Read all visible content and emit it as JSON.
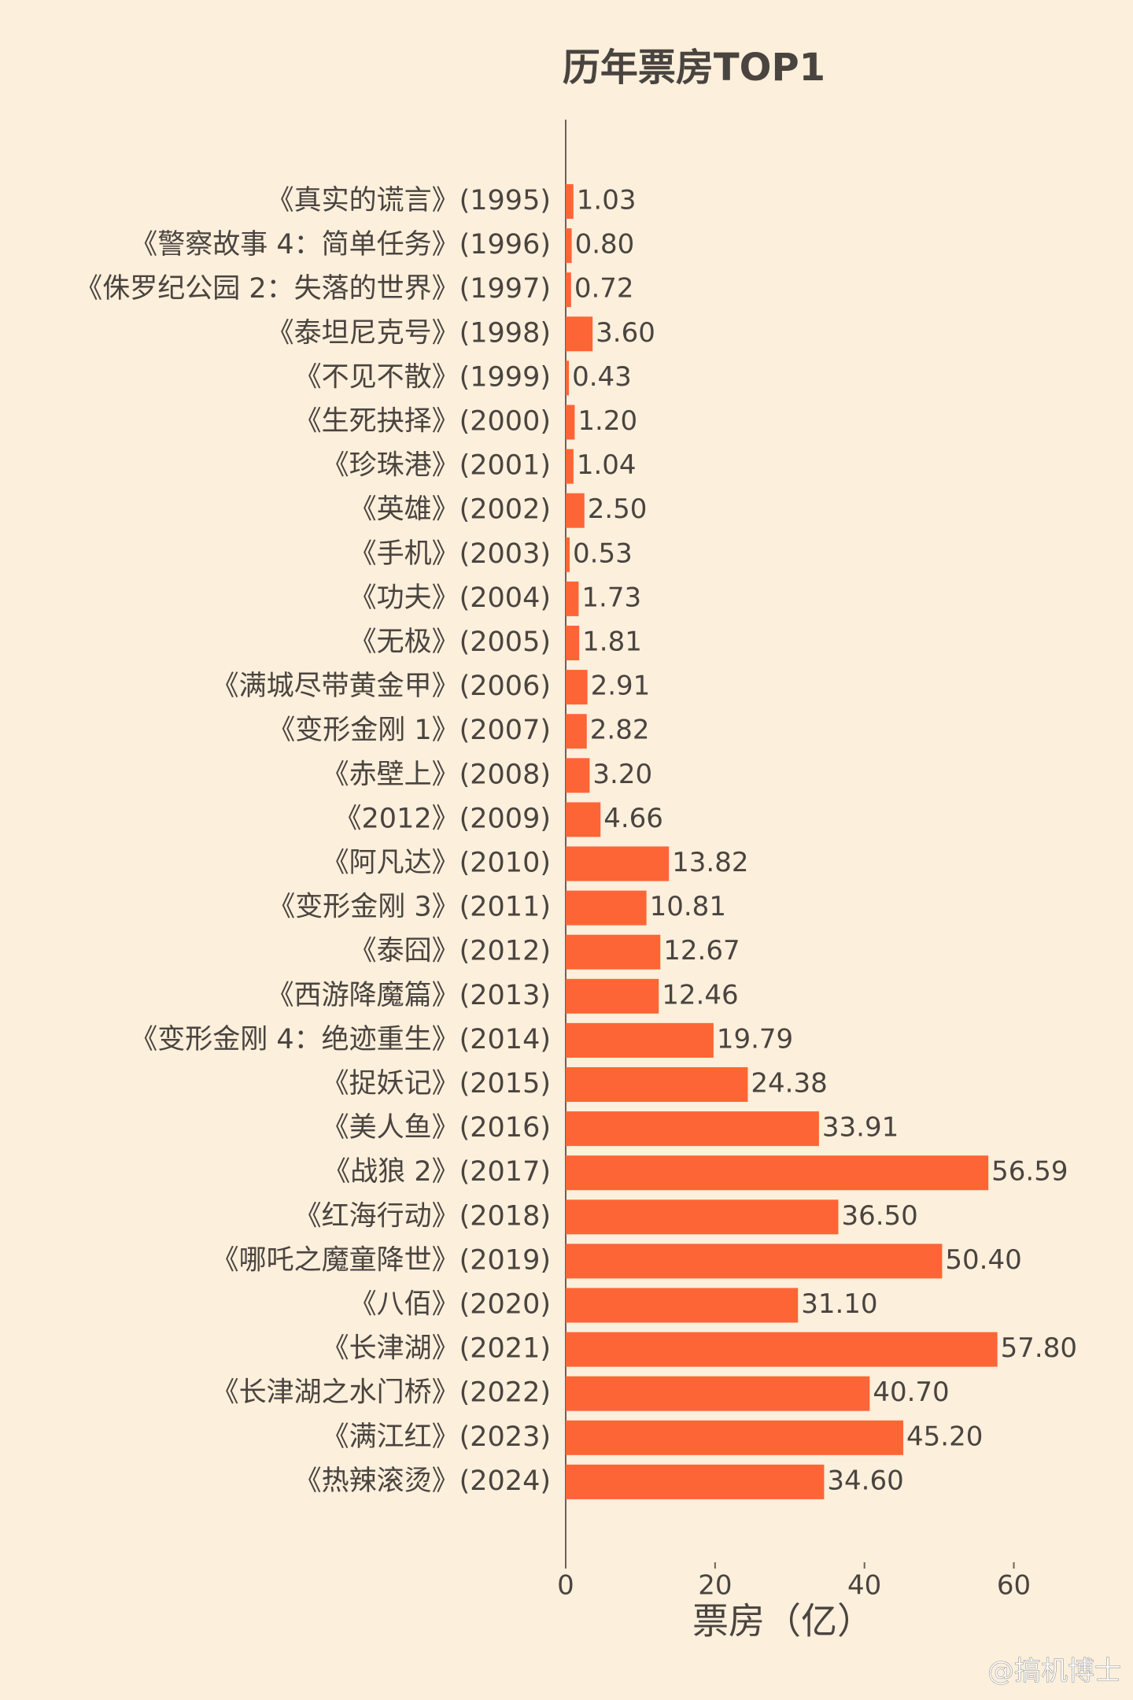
{
  "chart_data": {
    "type": "bar",
    "orientation": "horizontal",
    "title": "历年票房TOP1",
    "x_label": "票房（亿）",
    "categories": [
      "《真实的谎言》(1995)",
      "《警察故事 4：简单任务》(1996)",
      "《侏罗纪公园 2：失落的世界》(1997)",
      "《泰坦尼克号》(1998)",
      "《不见不散》(1999)",
      "《生死抉择》(2000)",
      "《珍珠港》(2001)",
      "《英雄》(2002)",
      "《手机》(2003)",
      "《功夫》(2004)",
      "《无极》(2005)",
      "《满城尽带黄金甲》(2006)",
      "《变形金刚 1》(2007)",
      "《赤壁上》(2008)",
      "《2012》(2009)",
      "《阿凡达》(2010)",
      "《变形金刚 3》(2011)",
      "《泰囧》(2012)",
      "《西游降魔篇》(2013)",
      "《变形金刚 4：绝迹重生》(2014)",
      "《捉妖记》(2015)",
      "《美人鱼》(2016)",
      "《战狼 2》(2017)",
      "《红海行动》(2018)",
      "《哪吒之魔童降世》(2019)",
      "《八佰》(2020)",
      "《长津湖》(2021)",
      "《长津湖之水门桥》(2022)",
      "《满江红》(2023)",
      "《热辣滚烫》(2024)"
    ],
    "values": [
      1.03,
      0.8,
      0.72,
      3.6,
      0.43,
      1.2,
      1.04,
      2.5,
      0.53,
      1.73,
      1.81,
      2.91,
      2.82,
      3.2,
      4.66,
      13.82,
      10.81,
      12.67,
      12.46,
      19.79,
      24.38,
      33.91,
      56.59,
      36.5,
      50.4,
      31.1,
      57.8,
      40.7,
      45.2,
      34.6
    ],
    "value_labels": [
      "1.03",
      "0.80",
      "0.72",
      "3.60",
      "0.43",
      "1.20",
      "1.04",
      "2.50",
      "0.53",
      "1.73",
      "1.81",
      "2.91",
      "2.82",
      "3.20",
      "4.66",
      "13.82",
      "10.81",
      "12.67",
      "12.46",
      "19.79",
      "24.38",
      "33.91",
      "56.59",
      "36.50",
      "50.40",
      "31.10",
      "57.80",
      "40.70",
      "45.20",
      "34.60"
    ],
    "color": "#fe6536",
    "xlim": [
      0,
      65
    ],
    "xticks": [
      0,
      20,
      40,
      60
    ],
    "grid": false
  },
  "watermark": "@搞机博士"
}
